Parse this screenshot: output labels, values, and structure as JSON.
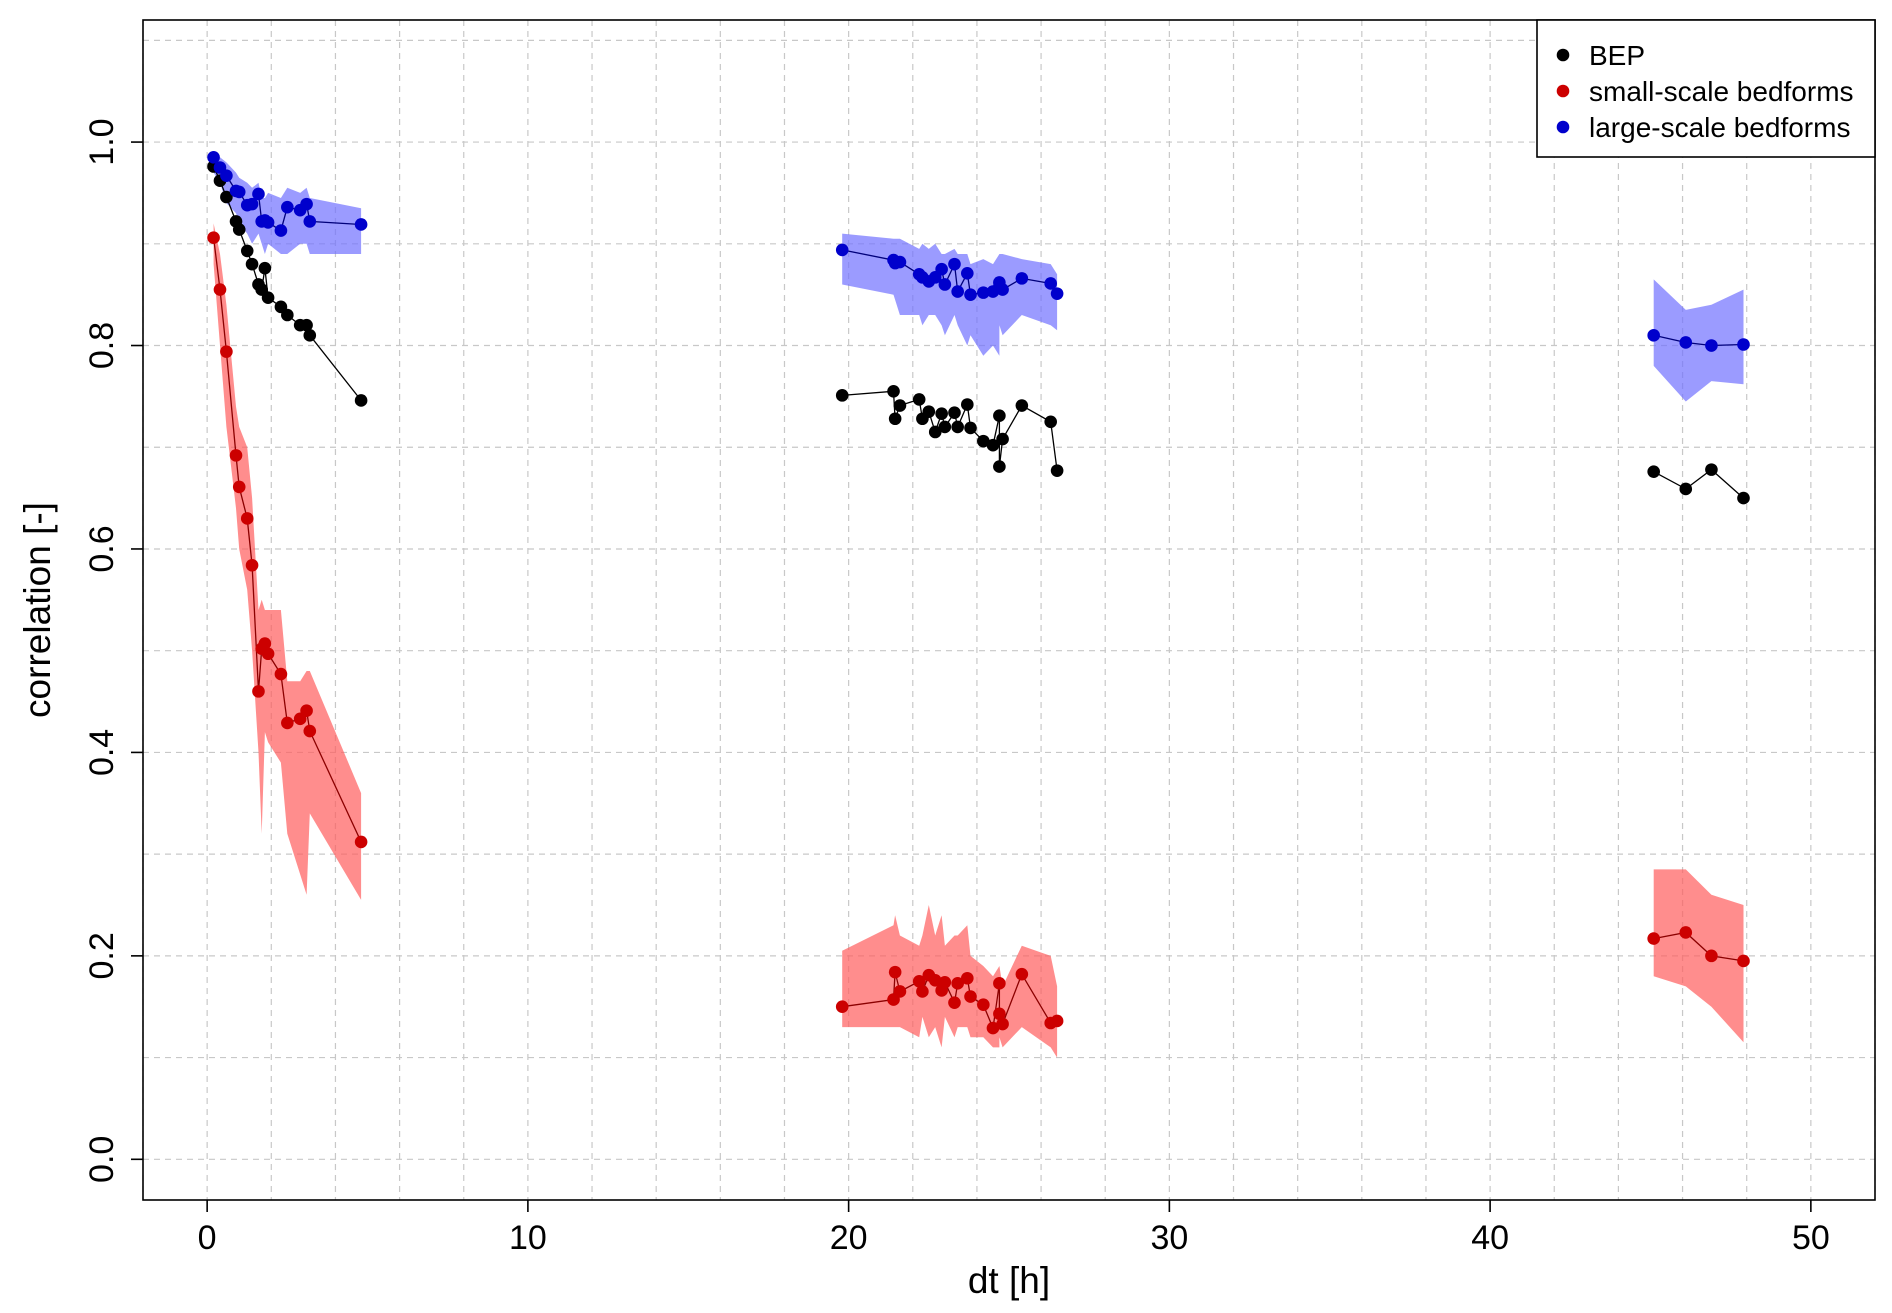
{
  "chart_data": {
    "type": "scatter",
    "xlabel": "dt [h]",
    "ylabel": "correlation [-]",
    "xlim": [
      -2,
      52
    ],
    "ylim": [
      -0.04,
      1.12
    ],
    "x_ticks": [
      0,
      10,
      20,
      30,
      40,
      50
    ],
    "x_tick_labels": [
      "0",
      "10",
      "20",
      "30",
      "40",
      "50"
    ],
    "y_ticks": [
      0.0,
      0.2,
      0.4,
      0.6,
      0.8,
      1.0
    ],
    "y_tick_labels": [
      "0.0",
      "0.2",
      "0.4",
      "0.6",
      "0.8",
      "1.0"
    ],
    "grid": true,
    "legend_position": "top-right",
    "series": [
      {
        "name": "BEP",
        "color": "#000000",
        "line_color": "#000000",
        "groups": [
          {
            "x": [
              0.2,
              0.4,
              0.6,
              0.9,
              1.0,
              1.25,
              1.4,
              1.6,
              1.7,
              1.8,
              1.9,
              2.3,
              2.5,
              2.9,
              3.1,
              3.2,
              4.8
            ],
            "y": [
              0.976,
              0.962,
              0.946,
              0.922,
              0.914,
              0.893,
              0.88,
              0.86,
              0.855,
              0.876,
              0.847,
              0.838,
              0.83,
              0.82,
              0.82,
              0.81,
              0.746
            ]
          },
          {
            "x": [
              19.8,
              21.4,
              21.45,
              21.6,
              22.2,
              22.3,
              22.5,
              22.7,
              22.9,
              23.0,
              23.3,
              23.4,
              23.7,
              23.8,
              24.2,
              24.5,
              24.7,
              24.7,
              24.8,
              25.4,
              26.3,
              26.5
            ],
            "y": [
              0.751,
              0.755,
              0.728,
              0.741,
              0.747,
              0.728,
              0.735,
              0.715,
              0.733,
              0.72,
              0.734,
              0.72,
              0.742,
              0.719,
              0.706,
              0.702,
              0.731,
              0.681,
              0.708,
              0.741,
              0.725,
              0.677
            ]
          },
          {
            "x": [
              45.1,
              46.1,
              46.9,
              47.9
            ],
            "y": [
              0.676,
              0.659,
              0.678,
              0.65
            ]
          }
        ]
      },
      {
        "name": "small-scale bedforms",
        "color": "#cc0000",
        "line_color": "#8b0000",
        "band_color": "#ff5c5c",
        "groups": [
          {
            "x": [
              0.2,
              0.4,
              0.6,
              0.9,
              1.0,
              1.25,
              1.4,
              1.6,
              1.7,
              1.8,
              1.9,
              2.3,
              2.5,
              2.9,
              3.1,
              3.2,
              4.8
            ],
            "y": [
              0.906,
              0.855,
              0.794,
              0.692,
              0.661,
              0.63,
              0.584,
              0.46,
              0.502,
              0.507,
              0.497,
              0.477,
              0.429,
              0.433,
              0.441,
              0.421,
              0.312
            ],
            "lo": [
              0.88,
              0.8,
              0.72,
              0.64,
              0.6,
              0.56,
              0.5,
              0.4,
              0.32,
              0.42,
              0.41,
              0.39,
              0.32,
              0.28,
              0.26,
              0.34,
              0.255
            ],
            "hi": [
              0.92,
              0.89,
              0.84,
              0.74,
              0.72,
              0.7,
              0.65,
              0.54,
              0.55,
              0.54,
              0.54,
              0.54,
              0.47,
              0.47,
              0.48,
              0.48,
              0.36
            ]
          },
          {
            "x": [
              19.8,
              21.4,
              21.45,
              21.6,
              22.2,
              22.3,
              22.5,
              22.7,
              22.9,
              23.0,
              23.3,
              23.4,
              23.7,
              23.8,
              24.2,
              24.5,
              24.7,
              24.7,
              24.8,
              25.4,
              26.3,
              26.5
            ],
            "y": [
              0.15,
              0.157,
              0.184,
              0.165,
              0.175,
              0.165,
              0.181,
              0.176,
              0.166,
              0.174,
              0.154,
              0.173,
              0.178,
              0.16,
              0.152,
              0.129,
              0.173,
              0.143,
              0.133,
              0.182,
              0.134,
              0.136
            ],
            "lo": [
              0.13,
              0.13,
              0.13,
              0.13,
              0.12,
              0.14,
              0.12,
              0.13,
              0.11,
              0.14,
              0.12,
              0.13,
              0.13,
              0.12,
              0.12,
              0.11,
              0.11,
              0.12,
              0.11,
              0.13,
              0.11,
              0.1
            ],
            "hi": [
              0.205,
              0.23,
              0.24,
              0.22,
              0.21,
              0.22,
              0.25,
              0.22,
              0.24,
              0.21,
              0.22,
              0.22,
              0.23,
              0.2,
              0.19,
              0.18,
              0.19,
              0.19,
              0.17,
              0.21,
              0.2,
              0.17
            ]
          },
          {
            "x": [
              45.1,
              46.1,
              46.9,
              47.9
            ],
            "y": [
              0.217,
              0.223,
              0.2,
              0.195
            ],
            "lo": [
              0.18,
              0.17,
              0.15,
              0.115
            ],
            "hi": [
              0.285,
              0.285,
              0.26,
              0.25
            ]
          }
        ]
      },
      {
        "name": "large-scale bedforms",
        "color": "#0000cc",
        "line_color": "#00007a",
        "band_color": "#7070ff",
        "groups": [
          {
            "x": [
              0.2,
              0.4,
              0.6,
              0.9,
              1.0,
              1.25,
              1.4,
              1.6,
              1.7,
              1.8,
              1.9,
              2.3,
              2.5,
              2.9,
              3.1,
              3.2,
              4.8
            ],
            "y": [
              0.985,
              0.975,
              0.967,
              0.952,
              0.951,
              0.938,
              0.939,
              0.949,
              0.922,
              0.923,
              0.921,
              0.913,
              0.936,
              0.933,
              0.939,
              0.922,
              0.919
            ],
            "lo": [
              0.97,
              0.96,
              0.94,
              0.93,
              0.92,
              0.91,
              0.9,
              0.91,
              0.9,
              0.89,
              0.9,
              0.89,
              0.89,
              0.9,
              0.9,
              0.89,
              0.89
            ],
            "hi": [
              0.99,
              0.985,
              0.98,
              0.97,
              0.965,
              0.96,
              0.955,
              0.96,
              0.945,
              0.945,
              0.95,
              0.945,
              0.955,
              0.95,
              0.955,
              0.945,
              0.935
            ]
          },
          {
            "x": [
              19.8,
              21.4,
              21.45,
              21.6,
              22.2,
              22.3,
              22.5,
              22.7,
              22.9,
              23.0,
              23.3,
              23.4,
              23.7,
              23.8,
              24.2,
              24.5,
              24.7,
              24.7,
              24.8,
              25.4,
              26.3,
              26.5
            ],
            "y": [
              0.894,
              0.884,
              0.881,
              0.882,
              0.87,
              0.867,
              0.863,
              0.867,
              0.875,
              0.86,
              0.88,
              0.853,
              0.871,
              0.85,
              0.852,
              0.853,
              0.858,
              0.862,
              0.855,
              0.866,
              0.861,
              0.851
            ],
            "lo": [
              0.86,
              0.85,
              0.845,
              0.83,
              0.83,
              0.82,
              0.83,
              0.83,
              0.82,
              0.81,
              0.83,
              0.82,
              0.8,
              0.81,
              0.79,
              0.8,
              0.79,
              0.82,
              0.81,
              0.83,
              0.82,
              0.815
            ],
            "hi": [
              0.91,
              0.905,
              0.905,
              0.905,
              0.895,
              0.9,
              0.895,
              0.9,
              0.89,
              0.89,
              0.895,
              0.89,
              0.89,
              0.88,
              0.885,
              0.88,
              0.89,
              0.89,
              0.89,
              0.885,
              0.88,
              0.87
            ]
          },
          {
            "x": [
              45.1,
              46.1,
              46.9,
              47.9
            ],
            "y": [
              0.81,
              0.803,
              0.8,
              0.801
            ],
            "lo": [
              0.78,
              0.745,
              0.765,
              0.762
            ],
            "hi": [
              0.865,
              0.835,
              0.84,
              0.855
            ]
          }
        ]
      }
    ]
  }
}
